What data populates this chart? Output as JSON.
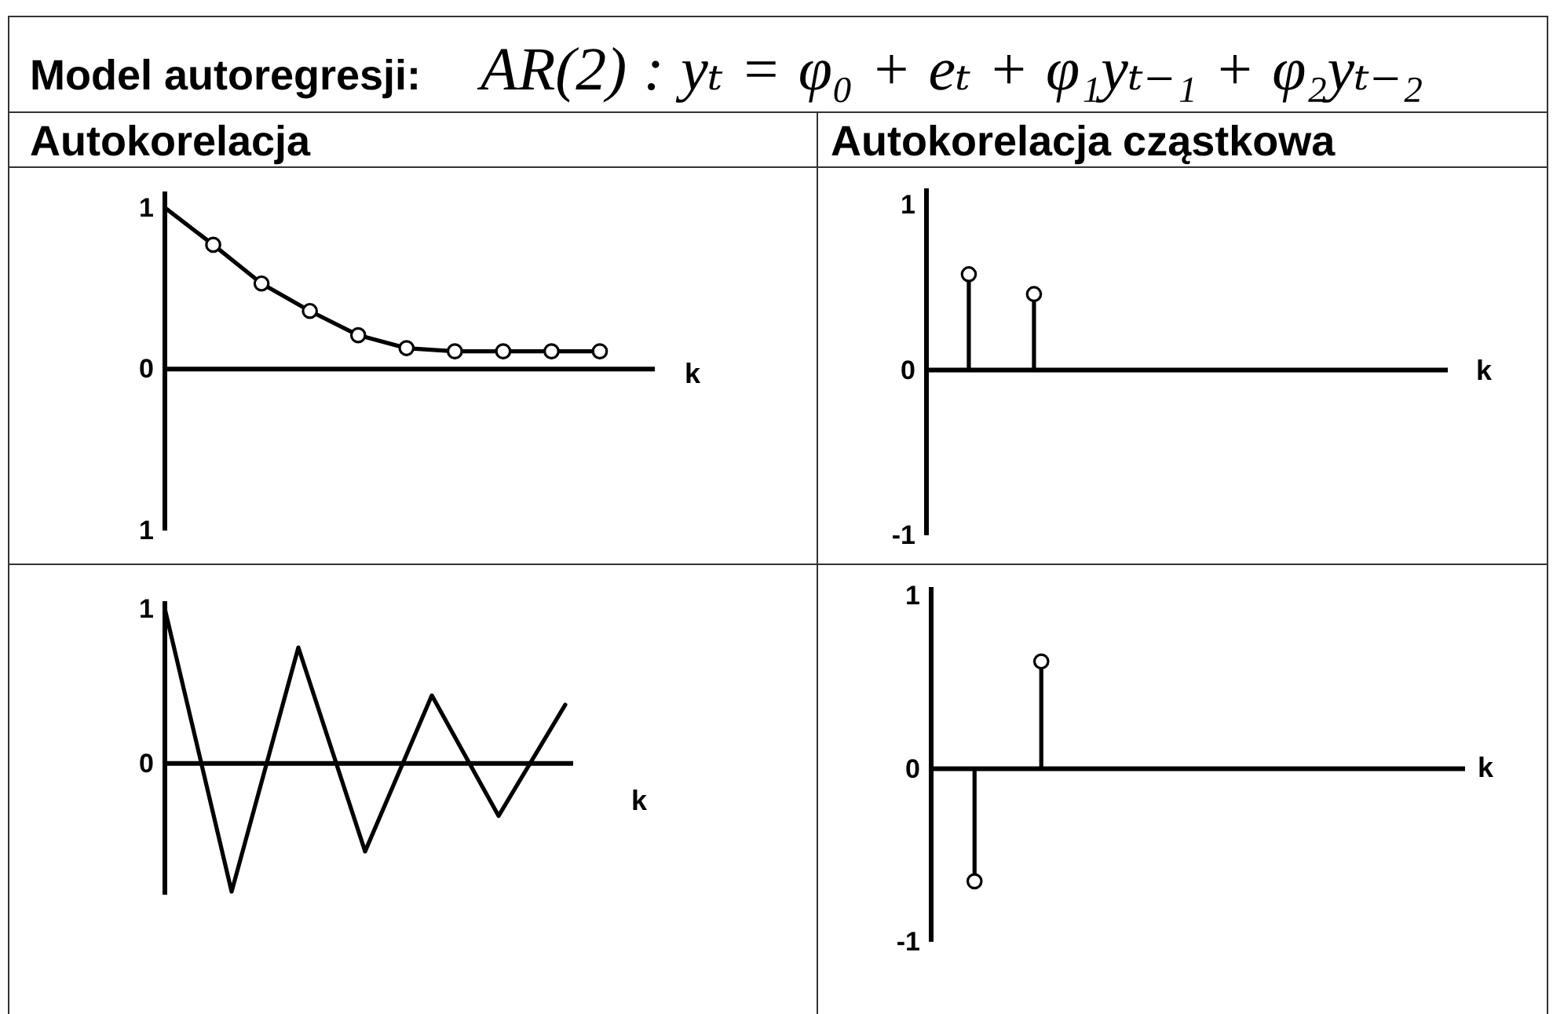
{
  "chart_data": [
    {
      "type": "other",
      "title": "Model autoregresji:",
      "annotations": [
        "AR(2) : yₜ = φ₀ + eₜ + φ₁yₜ₋₁ + φ₂yₜ₋₂"
      ]
    },
    {
      "type": "line",
      "title": "Autokorelacja",
      "xlabel": "k",
      "categories": [
        null,
        null,
        null,
        null,
        null,
        null,
        null,
        null,
        null,
        null
      ],
      "ylim": [
        -1,
        1.1
      ],
      "yticks": [
        1,
        0,
        {
          "value": -1,
          "label": "1"
        }
      ],
      "tick_labels": "y",
      "marker": "circle",
      "series": [
        {
          "type": "line",
          "marker": "none",
          "color": "#000000",
          "values": [
            1,
            0.77,
            0.53,
            0.36,
            0.21,
            0.13,
            0.11,
            0.11,
            0.11,
            0.11
          ]
        },
        {
          "type": "scatter",
          "color": "#000000",
          "values": [
            null,
            0.77,
            0.53,
            0.36,
            0.21,
            0.13,
            0.11,
            0.11,
            0.11,
            0.11
          ]
        }
      ]
    },
    {
      "type": "lollipop",
      "title": "Autokorelacja cząstkowa",
      "xlabel": "k",
      "categories": [
        null,
        null,
        null,
        null,
        null,
        null,
        null,
        null
      ],
      "values": [
        0.58,
        0.46,
        null,
        null,
        null,
        null,
        null,
        null
      ],
      "color": "#000000",
      "ylim": [
        -1,
        1.1
      ],
      "yticks": [
        1,
        0,
        -1
      ],
      "tick_labels": "y",
      "marker": "circle"
    },
    {
      "type": "line",
      "xlabel": "k",
      "categories": [
        null,
        null,
        null,
        null,
        null,
        null,
        null
      ],
      "values": [
        1,
        -0.83,
        0.75,
        -0.57,
        0.44,
        -0.34,
        0.38
      ],
      "color": "#000000",
      "ylim": [
        -0.85,
        1.05
      ],
      "yticks": [
        1,
        0
      ],
      "tick_labels": "y"
    },
    {
      "type": "lollipop",
      "xlabel": "k",
      "categories": [
        null,
        null,
        null,
        null,
        null,
        null,
        null,
        null
      ],
      "values": [
        -0.65,
        0.62,
        null,
        null,
        null,
        null,
        null,
        null
      ],
      "color": "#000000",
      "ylim": [
        -1,
        1.05
      ],
      "yticks": [
        1,
        0,
        -1
      ],
      "tick_labels": "y",
      "marker": "circle"
    }
  ]
}
